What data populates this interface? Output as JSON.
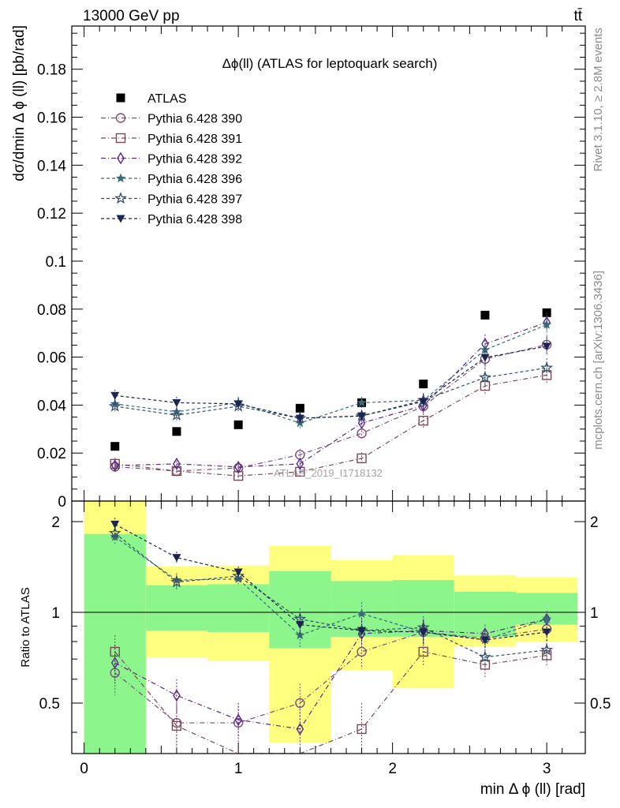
{
  "header": {
    "left": "13000 GeV pp",
    "right": "tt̄"
  },
  "side_text": {
    "rivet": "Rivet 3.1.10, ≥ 2.8M events",
    "mcplots": "mcplots.cern.ch [arXiv:1306.3436]"
  },
  "watermark": "ATLAS_2019_I1718132",
  "chart_data": [
    {
      "type": "scatter",
      "panel": "main",
      "title": "Δϕ(ll) (ATLAS for leptoquark search)",
      "ylabel": "dσ/dmin Δ ϕ (ll) [pb/rad]",
      "xlabel": "",
      "xlim": [
        -0.08,
        3.25
      ],
      "ylim": [
        0,
        0.198
      ],
      "yticks": [
        0,
        0.02,
        0.04,
        0.06,
        0.08,
        0.1,
        0.12,
        0.14,
        0.16,
        0.18
      ],
      "ytick_labels": [
        "0",
        "0.02",
        "0.04",
        "0.06",
        "0.08",
        "0.1",
        "0.12",
        "0.14",
        "0.16",
        "0.18"
      ],
      "legend_position": "top-left",
      "x": [
        0.2,
        0.6,
        1.0,
        1.4,
        1.8,
        2.2,
        2.6,
        3.0
      ],
      "series": [
        {
          "name": "ATLAS",
          "marker": "square-filled",
          "color": "#000000",
          "values": [
            0.0228,
            0.029,
            0.0318,
            0.0387,
            0.041,
            0.0488,
            0.0775,
            0.0785
          ]
        },
        {
          "name": "Pythia 6.428 390",
          "marker": "circle-open",
          "color": "#7b4e7d",
          "dash": "6,3,1,3",
          "values": [
            0.0143,
            0.0125,
            0.0138,
            0.0193,
            0.0282,
            0.0395,
            0.0592,
            0.0652
          ]
        },
        {
          "name": "Pythia 6.428 391",
          "marker": "square-open",
          "color": "#7a4a55",
          "dash": "6,3,1,3",
          "values": [
            0.0155,
            0.0125,
            0.0105,
            0.0122,
            0.0178,
            0.0335,
            0.048,
            0.0525
          ]
        },
        {
          "name": "Pythia 6.428 392",
          "marker": "diamond-open",
          "color": "#5a2a86",
          "dash": "6,3,1,3",
          "values": [
            0.0148,
            0.0155,
            0.0142,
            0.0155,
            0.0325,
            0.0398,
            0.0655,
            0.0745
          ]
        },
        {
          "name": "Pythia 6.428 396",
          "marker": "star-filled",
          "color": "#3a6b78",
          "dash": "4,3",
          "values": [
            0.0405,
            0.0372,
            0.041,
            0.0325,
            0.041,
            0.042,
            0.063,
            0.0735
          ]
        },
        {
          "name": "Pythia 6.428 397",
          "marker": "star-open",
          "color": "#35506b",
          "dash": "4,3",
          "values": [
            0.0395,
            0.0358,
            0.0395,
            0.0345,
            0.0355,
            0.042,
            0.0515,
            0.0555
          ]
        },
        {
          "name": "Pythia 6.428 398",
          "marker": "triangle-down-filled",
          "color": "#1c2550",
          "dash": "4,3",
          "values": [
            0.044,
            0.041,
            0.0405,
            0.0345,
            0.0355,
            0.0415,
            0.0598,
            0.0645
          ]
        }
      ],
      "errors": [
        0.0025,
        0.0025,
        0.0025,
        0.0025,
        0.0025,
        0.003,
        0.004,
        0.004
      ]
    },
    {
      "type": "scatter",
      "panel": "ratio",
      "ylabel": "Ratio to ATLAS",
      "xlabel": "min Δ ϕ (ll) [rad]",
      "xlim": [
        -0.08,
        3.25
      ],
      "ylim": [
        0.34,
        2.34
      ],
      "yticks": [
        0.5,
        1,
        2
      ],
      "ytick_labels": [
        "0.5",
        "1",
        "2"
      ],
      "xticks": [
        0,
        1,
        2,
        3
      ],
      "xtick_labels": [
        "0",
        "1",
        "2",
        "3"
      ],
      "bins": [
        [
          0,
          0.4
        ],
        [
          0.4,
          0.8
        ],
        [
          0.8,
          1.2
        ],
        [
          1.2,
          1.6
        ],
        [
          1.6,
          2.0
        ],
        [
          2.0,
          2.4
        ],
        [
          2.4,
          2.8
        ],
        [
          2.8,
          3.2
        ]
      ],
      "band_inner": [
        [
          0.0,
          1.82
        ],
        [
          0.87,
          1.23
        ],
        [
          0.86,
          1.24
        ],
        [
          0.76,
          1.37
        ],
        [
          0.83,
          1.27
        ],
        [
          0.83,
          1.28
        ],
        [
          0.83,
          1.17
        ],
        [
          0.91,
          1.16
        ]
      ],
      "band_outer": [
        [
          0.0,
          2.34
        ],
        [
          0.71,
          1.42
        ],
        [
          0.69,
          1.43
        ],
        [
          0.37,
          1.66
        ],
        [
          0.64,
          1.49
        ],
        [
          0.56,
          1.55
        ],
        [
          0.77,
          1.33
        ],
        [
          0.8,
          1.31
        ]
      ],
      "x": [
        0.2,
        0.6,
        1.0,
        1.4,
        1.8,
        2.2,
        2.6,
        3.0
      ],
      "series": [
        {
          "name": "Pythia 6.428 390",
          "values": [
            0.63,
            0.43,
            0.43,
            0.5,
            0.74,
            0.86,
            0.82,
            0.88
          ]
        },
        {
          "name": "Pythia 6.428 391",
          "values": [
            0.74,
            0.42,
            0.33,
            0.32,
            0.41,
            0.74,
            0.67,
            0.72
          ]
        },
        {
          "name": "Pythia 6.428 392",
          "values": [
            0.68,
            0.53,
            0.44,
            0.41,
            0.85,
            0.87,
            0.85,
            0.95
          ]
        },
        {
          "name": "Pythia 6.428 396",
          "values": [
            1.78,
            1.28,
            1.29,
            0.84,
            0.99,
            0.86,
            0.81,
            0.95
          ]
        },
        {
          "name": "Pythia 6.428 397",
          "values": [
            1.83,
            1.26,
            1.32,
            0.95,
            0.87,
            0.89,
            0.71,
            0.75
          ]
        },
        {
          "name": "Pythia 6.428 398",
          "values": [
            1.96,
            1.52,
            1.36,
            0.91,
            0.87,
            0.86,
            0.81,
            0.86
          ]
        }
      ],
      "errors": [
        0.1,
        0.07,
        0.06,
        0.08,
        0.09,
        0.08,
        0.06,
        0.06
      ]
    }
  ]
}
